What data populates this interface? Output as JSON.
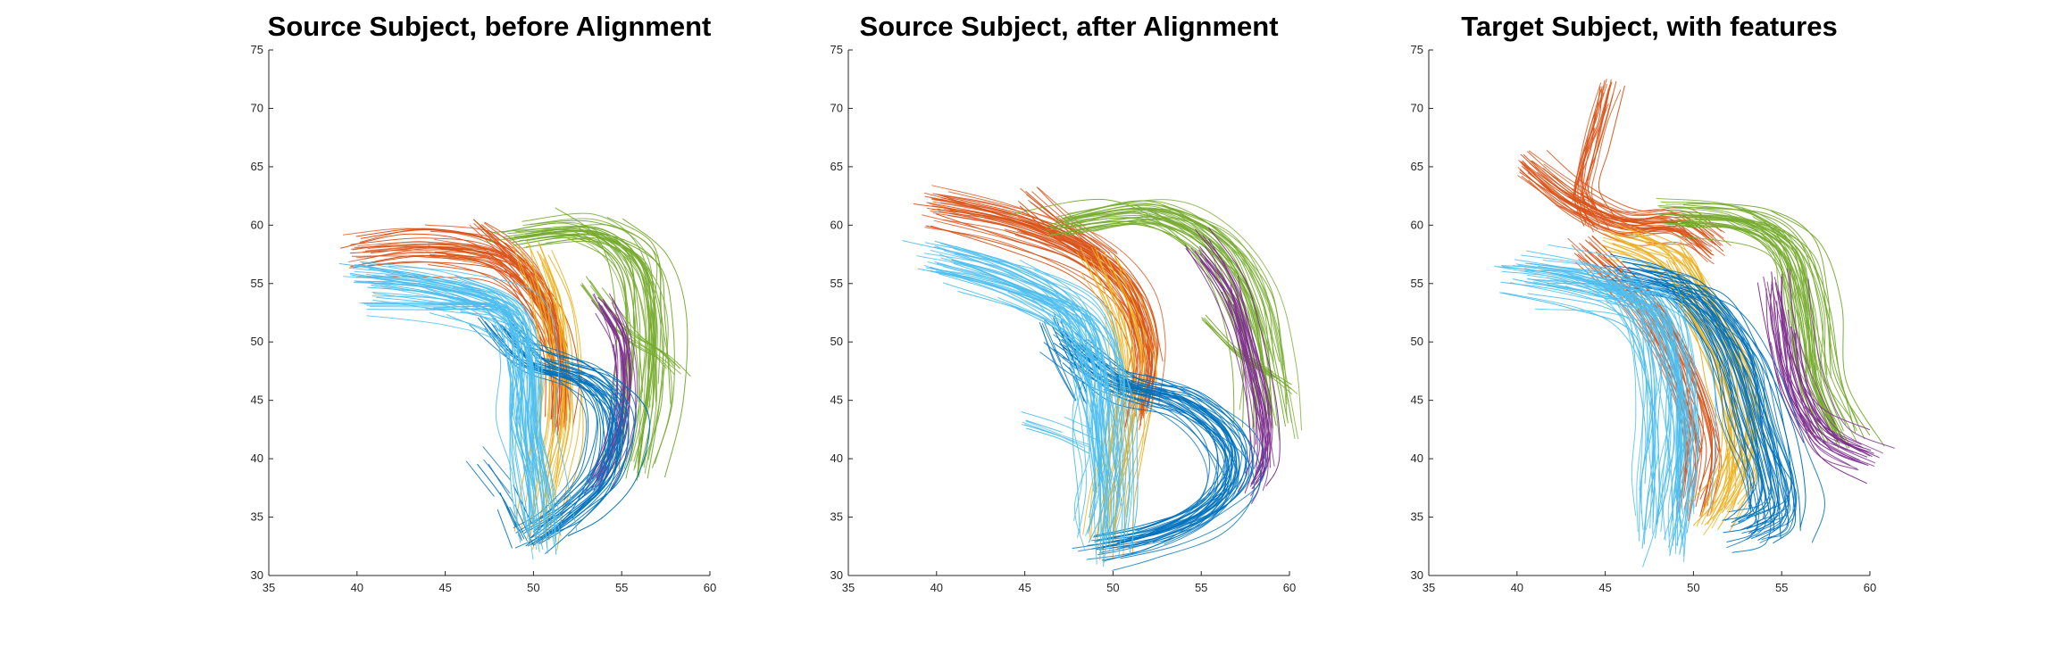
{
  "colors": {
    "blue": "#0072BD",
    "orange": "#D95319",
    "yellow": "#EDB120",
    "purple": "#7E2F8E",
    "green": "#77AC30",
    "cyan": "#4DBEEE"
  },
  "chart_data": [
    {
      "type": "line",
      "title": "Source Subject, before Alignment",
      "xlim": [
        35,
        60
      ],
      "ylim": [
        30,
        75
      ],
      "x_ticks": [
        "35",
        "40",
        "45",
        "50",
        "55",
        "60"
      ],
      "y_ticks": [
        "30",
        "35",
        "40",
        "45",
        "50",
        "55",
        "60",
        "65",
        "70",
        "75"
      ],
      "grid": false,
      "bundles": [
        {
          "color": "orange",
          "count": 40,
          "spread": [
            0.6,
            1.2
          ],
          "path": [
            [
              40,
              57.5
            ],
            [
              44,
              58
            ],
            [
              48,
              57
            ],
            [
              50.5,
              53
            ],
            [
              51.5,
              48
            ],
            [
              51.5,
              43
            ]
          ]
        },
        {
          "color": "orange",
          "count": 14,
          "spread": [
            0.4,
            0.6
          ],
          "path": [
            [
              47,
              60
            ],
            [
              48.5,
              58
            ],
            [
              50,
              55.5
            ],
            [
              51,
              52
            ]
          ]
        },
        {
          "color": "green",
          "count": 40,
          "spread": [
            1.0,
            0.7
          ],
          "path": [
            [
              49,
              59
            ],
            [
              53,
              59.5
            ],
            [
              55.5,
              57
            ],
            [
              56.3,
              52
            ],
            [
              56.2,
              45
            ],
            [
              55.5,
              39
            ]
          ]
        },
        {
          "color": "green",
          "count": 8,
          "spread": [
            0.3,
            0.5
          ],
          "path": [
            [
              53,
              55
            ],
            [
              55,
              51
            ],
            [
              57,
              49
            ],
            [
              58,
              47.5
            ]
          ]
        },
        {
          "color": "yellow",
          "count": 22,
          "spread": [
            0.7,
            0.9
          ],
          "path": [
            [
              50,
              58
            ],
            [
              51,
              54
            ],
            [
              51.5,
              49
            ],
            [
              51.5,
              43
            ],
            [
              50.8,
              38
            ],
            [
              50.2,
              33
            ]
          ]
        },
        {
          "color": "purple",
          "count": 24,
          "spread": [
            0.6,
            0.8
          ],
          "path": [
            [
              54,
              53
            ],
            [
              55,
              50
            ],
            [
              55.2,
              46
            ],
            [
              54.8,
              42
            ],
            [
              53.6,
              38
            ]
          ]
        },
        {
          "color": "blue",
          "count": 32,
          "spread": [
            1.0,
            0.8
          ],
          "path": [
            [
              48,
              52
            ],
            [
              50,
              48.5
            ],
            [
              53,
              47
            ],
            [
              54.5,
              44
            ],
            [
              54,
              39
            ],
            [
              52,
              35.5
            ],
            [
              50,
              33.5
            ]
          ]
        },
        {
          "color": "blue",
          "count": 12,
          "spread": [
            0.5,
            1.0
          ],
          "path": [
            [
              47,
              40
            ],
            [
              48.5,
              37
            ],
            [
              49.5,
              34
            ]
          ]
        },
        {
          "color": "cyan",
          "count": 48,
          "spread": [
            1.0,
            1.2
          ],
          "path": [
            [
              40.5,
              55.5
            ],
            [
              45,
              54.5
            ],
            [
              48.5,
              52.5
            ],
            [
              49.5,
              48
            ],
            [
              49.5,
              43
            ],
            [
              50,
              38.5
            ],
            [
              50.5,
              33.5
            ]
          ]
        },
        {
          "color": "cyan",
          "count": 10,
          "spread": [
            0.3,
            0.3
          ],
          "path": [
            [
              40.5,
              53
            ],
            [
              44,
              53
            ],
            [
              48,
              53
            ],
            [
              49,
              52
            ]
          ]
        }
      ]
    },
    {
      "type": "line",
      "title": "Source Subject, after Alignment",
      "xlim": [
        35,
        60
      ],
      "ylim": [
        30,
        75
      ],
      "x_ticks": [
        "35",
        "40",
        "45",
        "50",
        "55",
        "60"
      ],
      "y_ticks": [
        "30",
        "35",
        "40",
        "45",
        "50",
        "55",
        "60",
        "65",
        "70",
        "75"
      ],
      "grid": false,
      "bundles": [
        {
          "color": "orange",
          "count": 44,
          "spread": [
            0.6,
            1.2
          ],
          "path": [
            [
              40,
              61.5
            ],
            [
              44.5,
              60
            ],
            [
              48.5,
              57.5
            ],
            [
              51,
              54
            ],
            [
              52,
              49
            ],
            [
              51.5,
              44
            ]
          ]
        },
        {
          "color": "orange",
          "count": 12,
          "spread": [
            0.5,
            0.7
          ],
          "path": [
            [
              45,
              62.5
            ],
            [
              47,
              60
            ],
            [
              49.5,
              57
            ]
          ]
        },
        {
          "color": "green",
          "count": 40,
          "spread": [
            1.0,
            0.8
          ],
          "path": [
            [
              47,
              60
            ],
            [
              52,
              61
            ],
            [
              55.5,
              58.5
            ],
            [
              57.5,
              54
            ],
            [
              58.5,
              48
            ],
            [
              58.8,
              43
            ]
          ]
        },
        {
          "color": "green",
          "count": 8,
          "spread": [
            0.3,
            0.5
          ],
          "path": [
            [
              55,
              52
            ],
            [
              57,
              49
            ],
            [
              59,
              47
            ],
            [
              60,
              46
            ]
          ]
        },
        {
          "color": "yellow",
          "count": 22,
          "spread": [
            0.8,
            0.9
          ],
          "path": [
            [
              49,
              57
            ],
            [
              50.5,
              52
            ],
            [
              51,
              47
            ],
            [
              50.5,
              42
            ],
            [
              49.8,
              37
            ],
            [
              49.5,
              33
            ]
          ]
        },
        {
          "color": "purple",
          "count": 26,
          "spread": [
            0.6,
            0.8
          ],
          "path": [
            [
              55,
              58
            ],
            [
              56.8,
              54
            ],
            [
              57.8,
              49
            ],
            [
              58.5,
              44
            ],
            [
              58.6,
              40
            ],
            [
              58,
              38
            ]
          ]
        },
        {
          "color": "blue",
          "count": 38,
          "spread": [
            1.1,
            0.8
          ],
          "path": [
            [
              47,
              50
            ],
            [
              50,
              46.5
            ],
            [
              53.5,
              45
            ],
            [
              56,
              42
            ],
            [
              56.5,
              38.5
            ],
            [
              55,
              35.5
            ],
            [
              52,
              33.5
            ],
            [
              49,
              32.5
            ]
          ]
        },
        {
          "color": "blue",
          "count": 10,
          "spread": [
            0.5,
            0.6
          ],
          "path": [
            [
              46.5,
              51.5
            ],
            [
              47.5,
              48
            ],
            [
              48.5,
              45
            ]
          ]
        },
        {
          "color": "cyan",
          "count": 50,
          "spread": [
            1.1,
            1.3
          ],
          "path": [
            [
              40,
              57
            ],
            [
              44.5,
              55
            ],
            [
              48,
              52
            ],
            [
              49.3,
              47
            ],
            [
              49.5,
              42
            ],
            [
              49.7,
              37
            ],
            [
              49.5,
              33
            ]
          ]
        },
        {
          "color": "cyan",
          "count": 10,
          "spread": [
            0.4,
            0.5
          ],
          "path": [
            [
              45,
              43.5
            ],
            [
              47,
              42.5
            ],
            [
              48.5,
              41.5
            ]
          ]
        }
      ]
    },
    {
      "type": "line",
      "title": "Target Subject, with features",
      "xlim": [
        35,
        60
      ],
      "ylim": [
        30,
        75
      ],
      "x_ticks": [
        "35",
        "40",
        "45",
        "50",
        "55",
        "60"
      ],
      "y_ticks": [
        "30",
        "35",
        "40",
        "45",
        "50",
        "55",
        "60",
        "65",
        "70",
        "75"
      ],
      "grid": false,
      "bundles": [
        {
          "color": "orange",
          "count": 20,
          "spread": [
            0.6,
            0.8
          ],
          "path": [
            [
              45.3,
              72
            ],
            [
              44.8,
              69
            ],
            [
              44.2,
              66
            ],
            [
              43.8,
              63
            ],
            [
              44.5,
              60.5
            ]
          ]
        },
        {
          "color": "orange",
          "count": 36,
          "spread": [
            0.6,
            1.0
          ],
          "path": [
            [
              40.5,
              65
            ],
            [
              43,
              62
            ],
            [
              46,
              60
            ],
            [
              49,
              60
            ],
            [
              51,
              58
            ]
          ]
        },
        {
          "color": "orange",
          "count": 30,
          "spread": [
            0.9,
            1.0
          ],
          "path": [
            [
              44,
              58
            ],
            [
              47.5,
              53
            ],
            [
              49.5,
              47
            ],
            [
              50.5,
              41
            ],
            [
              50,
              36
            ]
          ]
        },
        {
          "color": "green",
          "count": 40,
          "spread": [
            1.0,
            0.7
          ],
          "path": [
            [
              49,
              61
            ],
            [
              53,
              60.5
            ],
            [
              55.5,
              58
            ],
            [
              56.5,
              53
            ],
            [
              57,
              47
            ],
            [
              58.5,
              42
            ]
          ]
        },
        {
          "color": "yellow",
          "count": 36,
          "spread": [
            1.2,
            1.0
          ],
          "path": [
            [
              46,
              59
            ],
            [
              49,
              57
            ],
            [
              51,
              52
            ],
            [
              52.5,
              47
            ],
            [
              53,
              42
            ],
            [
              52.5,
              38
            ],
            [
              51.5,
              35
            ]
          ]
        },
        {
          "color": "purple",
          "count": 32,
          "spread": [
            0.7,
            1.0
          ],
          "path": [
            [
              54.5,
              55
            ],
            [
              54.8,
              51
            ],
            [
              55.5,
              46
            ],
            [
              57,
              42
            ],
            [
              59.5,
              40
            ]
          ]
        },
        {
          "color": "blue",
          "count": 46,
          "spread": [
            1.2,
            1.0
          ],
          "path": [
            [
              46.5,
              55.5
            ],
            [
              50,
              54
            ],
            [
              52.3,
              49
            ],
            [
              53.5,
              43
            ],
            [
              54.5,
              38
            ],
            [
              54.5,
              35
            ],
            [
              53,
              33.8
            ]
          ]
        },
        {
          "color": "cyan",
          "count": 56,
          "spread": [
            1.3,
            1.3
          ],
          "path": [
            [
              40.5,
              56
            ],
            [
              44.5,
              55
            ],
            [
              47.5,
              53
            ],
            [
              48.8,
              48
            ],
            [
              49,
              42
            ],
            [
              48.8,
              37
            ],
            [
              48.5,
              33
            ]
          ]
        }
      ]
    }
  ]
}
